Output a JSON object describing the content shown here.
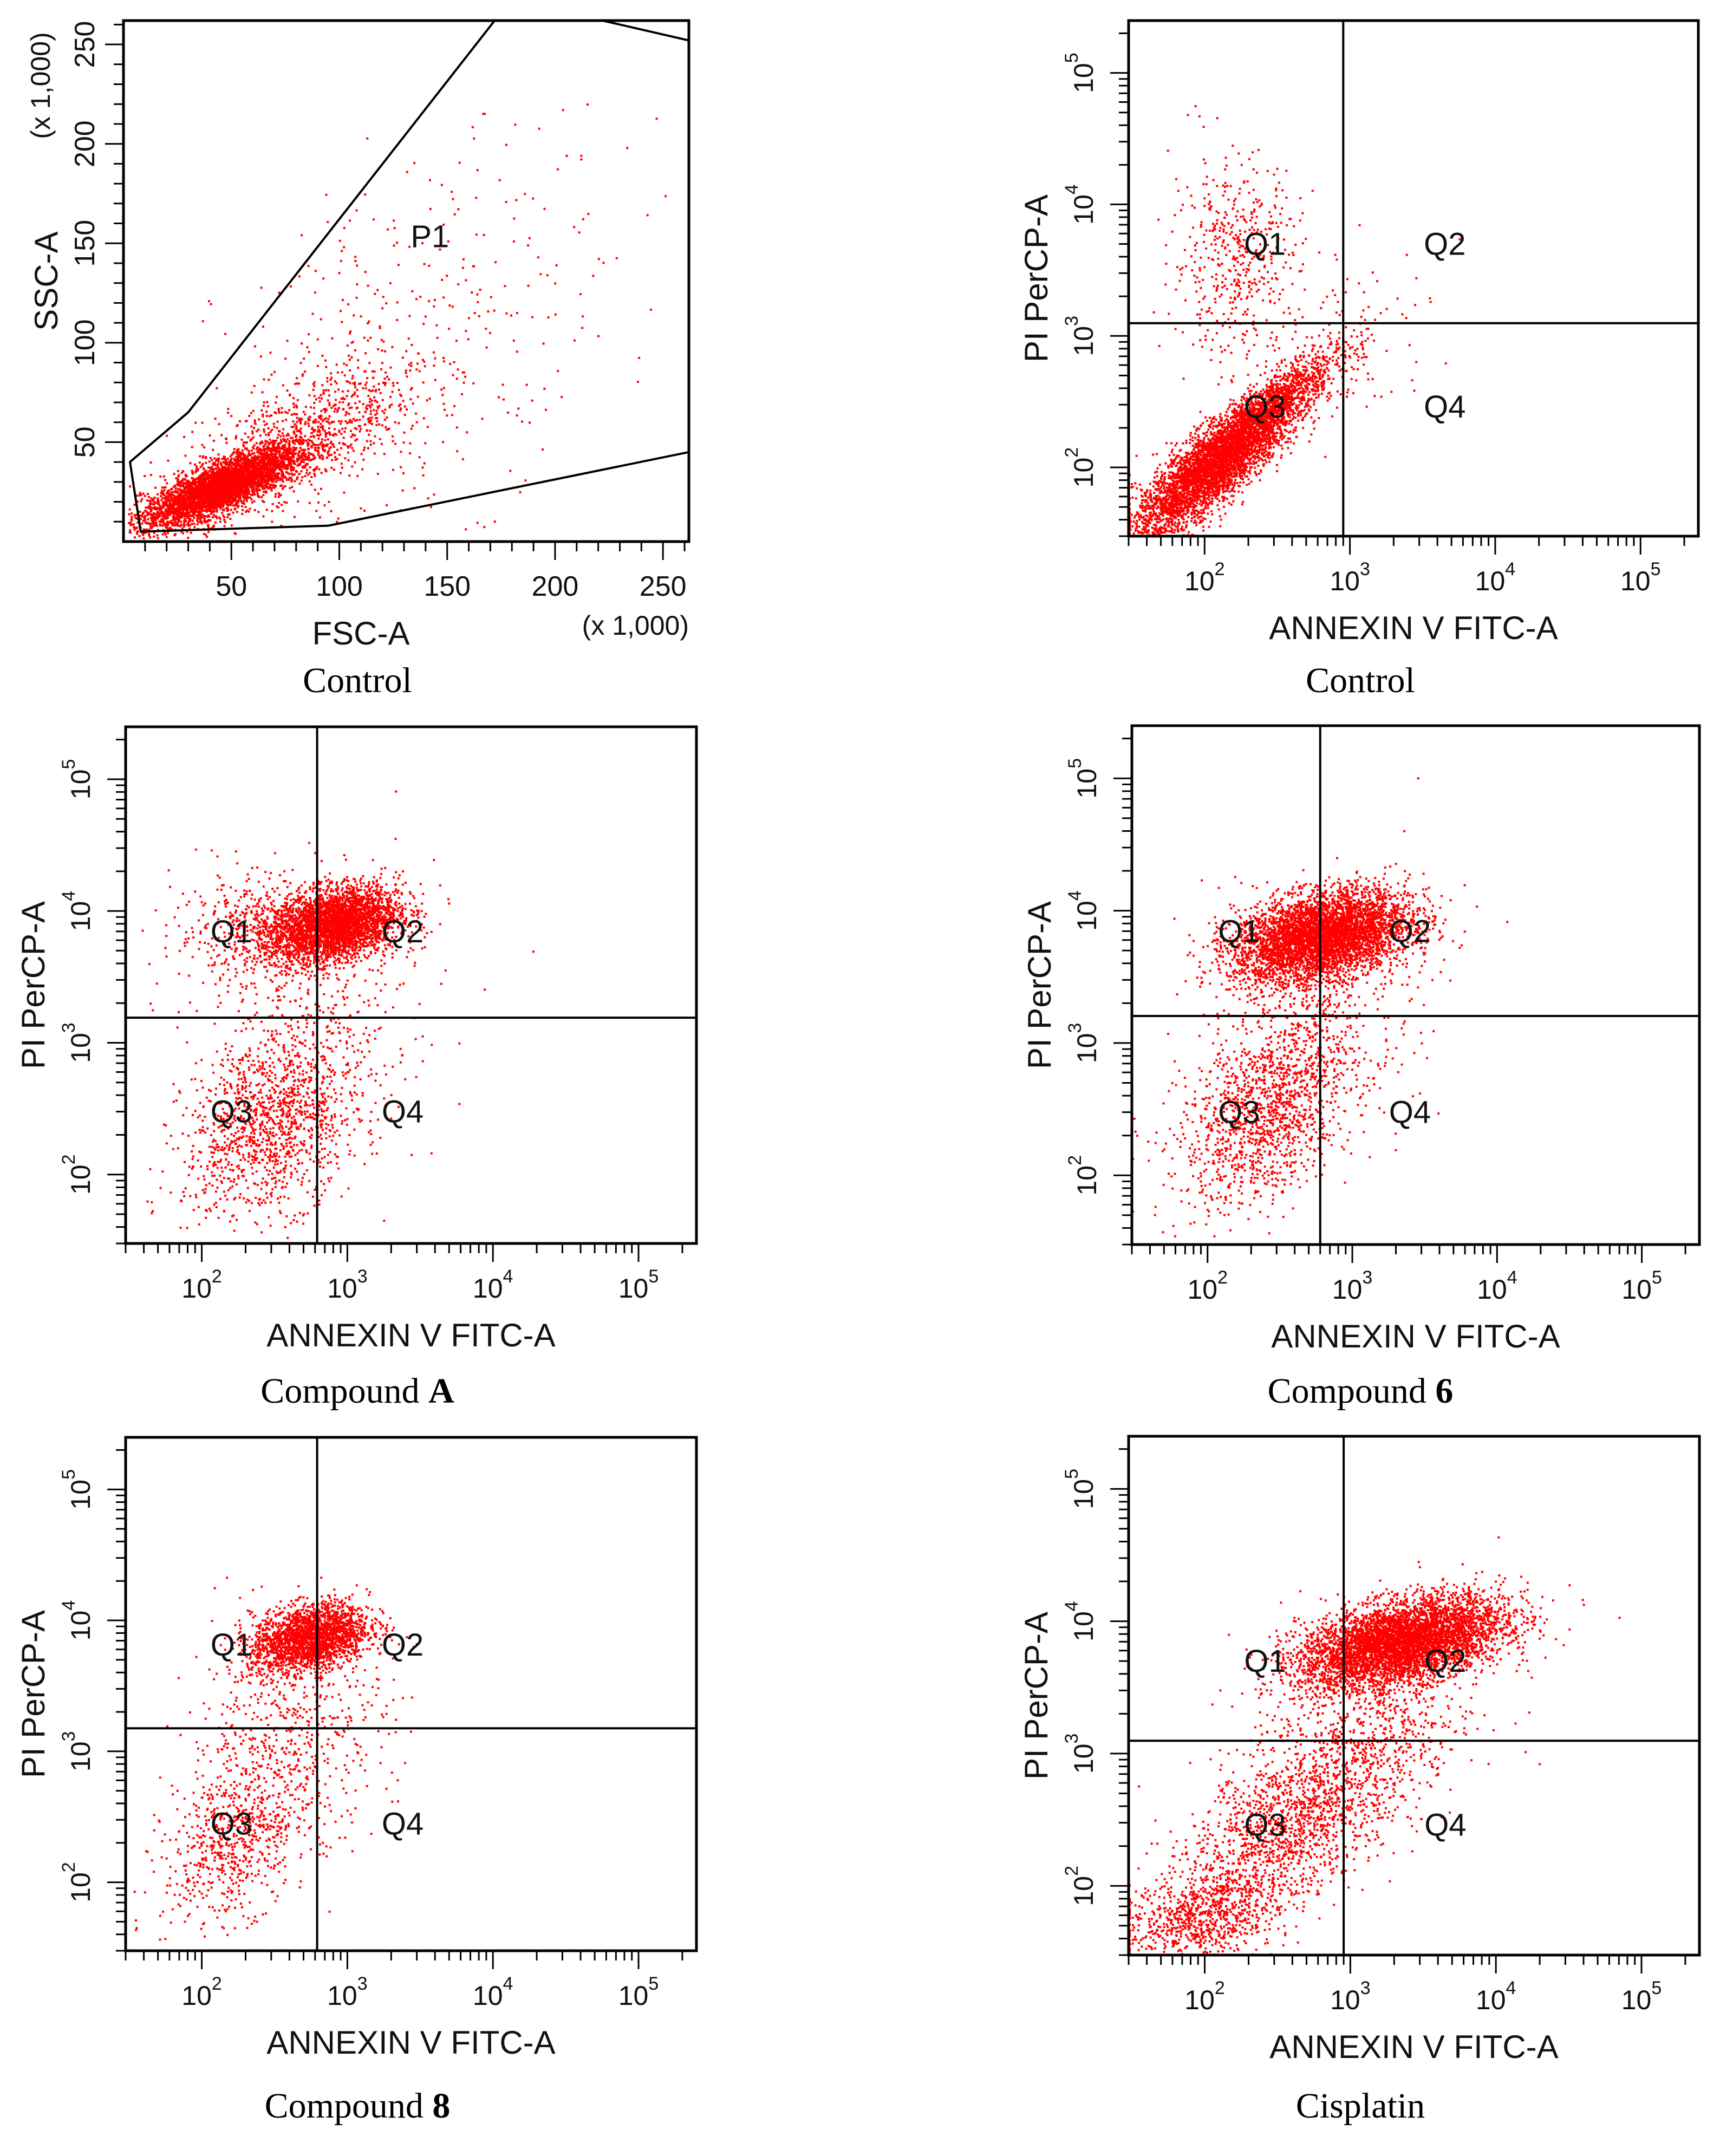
{
  "colors": {
    "dot": "#ff0000",
    "frame": "#000000",
    "background": "#ffffff"
  },
  "chart_data": [
    {
      "type": "scatter",
      "caption": "Control",
      "xlabel": "FSC-A",
      "ylabel": "SSC-A",
      "x_multiplier": "(x 1,000)",
      "y_multiplier": "(x 1,000)",
      "xscale": "linear",
      "yscale": "linear",
      "xlim": [
        0,
        262
      ],
      "ylim": [
        0,
        262
      ],
      "x_ticks": [
        "50",
        "100",
        "150",
        "200",
        "250"
      ],
      "y_ticks": [
        "50",
        "100",
        "150",
        "200",
        "250"
      ],
      "gate": {
        "name": "P1",
        "label_at": [
          142,
          148
        ],
        "vertices": [
          [
            3,
            40
          ],
          [
            8,
            5
          ],
          [
            95,
            8
          ],
          [
            262,
            45
          ],
          [
            262,
            252
          ],
          [
            222,
            262
          ],
          [
            172,
            262
          ],
          [
            30,
            65
          ]
        ]
      },
      "population": [
        {
          "mean": [
            45,
            28
          ],
          "sd": [
            18,
            10
          ],
          "corr": 0.8,
          "count": 4200
        },
        {
          "mean": [
            80,
            50
          ],
          "sd": [
            30,
            22
          ],
          "corr": 0.7,
          "count": 1000
        },
        {
          "mean": [
            135,
            100
          ],
          "sd": [
            45,
            50
          ],
          "corr": 0.4,
          "count": 340
        }
      ],
      "grid": false,
      "legend": "none"
    },
    {
      "type": "scatter",
      "caption": "Control",
      "xlabel": "ANNEXIN V FITC-A",
      "ylabel": "PI PerCP-A",
      "xscale": "log",
      "yscale": "log",
      "xlim": [
        30,
        250000
      ],
      "ylim": [
        30,
        250000
      ],
      "x_ticks": [
        {
          "base": "10",
          "exp": "2",
          "value": 100
        },
        {
          "base": "10",
          "exp": "3",
          "value": 1000
        },
        {
          "base": "10",
          "exp": "4",
          "value": 10000
        },
        {
          "base": "10",
          "exp": "5",
          "value": 100000
        }
      ],
      "y_ticks": [
        {
          "base": "10",
          "exp": "2",
          "value": 100
        },
        {
          "base": "10",
          "exp": "3",
          "value": 1000
        },
        {
          "base": "10",
          "exp": "4",
          "value": 10000
        },
        {
          "base": "10",
          "exp": "5",
          "value": 100000
        }
      ],
      "quadrant_gate": {
        "x": 900,
        "y": 1250
      },
      "quadrant_labels": [
        {
          "label": "Q1",
          "at": [
            260,
            5000
          ]
        },
        {
          "label": "Q2",
          "at": [
            4500,
            5000
          ]
        },
        {
          "label": "Q3",
          "at": [
            260,
            290
          ]
        },
        {
          "label": "Q4",
          "at": [
            4500,
            290
          ]
        }
      ],
      "population": [
        {
          "mean": [
            120,
            110
          ],
          "sd": [
            0.28,
            0.28
          ],
          "corr": 0.85,
          "count": 4500
        },
        {
          "mean": [
            300,
            320
          ],
          "sd": [
            0.25,
            0.22
          ],
          "corr": 0.9,
          "count": 900
        },
        {
          "mean": [
            160,
            4000
          ],
          "sd": [
            0.22,
            0.38
          ],
          "corr": 0.0,
          "count": 480
        },
        {
          "mean": [
            900,
            800
          ],
          "sd": [
            0.32,
            0.35
          ],
          "corr": 0.3,
          "count": 120
        }
      ],
      "grid": false,
      "legend": "none"
    },
    {
      "type": "scatter",
      "caption": "Compound ",
      "caption_bold": "A",
      "xlabel": "ANNEXIN V FITC-A",
      "ylabel": "PI PerCP-A",
      "xscale": "log",
      "yscale": "log",
      "xlim": [
        30,
        250000
      ],
      "ylim": [
        30,
        250000
      ],
      "x_ticks": [
        {
          "base": "10",
          "exp": "2",
          "value": 100
        },
        {
          "base": "10",
          "exp": "3",
          "value": 1000
        },
        {
          "base": "10",
          "exp": "4",
          "value": 10000
        },
        {
          "base": "10",
          "exp": "5",
          "value": 100000
        }
      ],
      "y_ticks": [
        {
          "base": "10",
          "exp": "2",
          "value": 100
        },
        {
          "base": "10",
          "exp": "3",
          "value": 1000
        },
        {
          "base": "10",
          "exp": "4",
          "value": 10000
        },
        {
          "base": "10",
          "exp": "5",
          "value": 100000
        }
      ],
      "quadrant_gate": {
        "x": 620,
        "y": 1550
      },
      "quadrant_labels": [
        {
          "label": "Q1",
          "at": [
            160,
            7000
          ]
        },
        {
          "label": "Q2",
          "at": [
            2400,
            7000
          ]
        },
        {
          "label": "Q3",
          "at": [
            160,
            300
          ]
        },
        {
          "label": "Q4",
          "at": [
            2400,
            300
          ]
        }
      ],
      "population": [
        {
          "mean": [
            800,
            8000
          ],
          "sd": [
            0.22,
            0.14
          ],
          "corr": 0.3,
          "count": 3400
        },
        {
          "mean": [
            300,
            250
          ],
          "sd": [
            0.3,
            0.35
          ],
          "corr": 0.3,
          "count": 1300
        },
        {
          "mean": [
            250,
            7000
          ],
          "sd": [
            0.3,
            0.22
          ],
          "corr": 0.0,
          "count": 500
        },
        {
          "mean": [
            700,
            1500
          ],
          "sd": [
            0.4,
            0.5
          ],
          "corr": 0.2,
          "count": 300
        }
      ],
      "grid": false,
      "legend": "none"
    },
    {
      "type": "scatter",
      "caption": "Compound ",
      "caption_bold": "6",
      "xlabel": "ANNEXIN V FITC-A",
      "ylabel": "PI PerCP-A",
      "xscale": "log",
      "yscale": "log",
      "xlim": [
        30,
        250000
      ],
      "ylim": [
        30,
        250000
      ],
      "x_ticks": [
        {
          "base": "10",
          "exp": "2",
          "value": 100
        },
        {
          "base": "10",
          "exp": "3",
          "value": 1000
        },
        {
          "base": "10",
          "exp": "4",
          "value": 10000
        },
        {
          "base": "10",
          "exp": "5",
          "value": 100000
        }
      ],
      "y_ticks": [
        {
          "base": "10",
          "exp": "2",
          "value": 100
        },
        {
          "base": "10",
          "exp": "3",
          "value": 1000
        },
        {
          "base": "10",
          "exp": "4",
          "value": 10000
        },
        {
          "base": "10",
          "exp": "5",
          "value": 100000
        }
      ],
      "quadrant_gate": {
        "x": 600,
        "y": 1600
      },
      "quadrant_labels": [
        {
          "label": "Q1",
          "at": [
            165,
            7000
          ]
        },
        {
          "label": "Q2",
          "at": [
            2500,
            7000
          ]
        },
        {
          "label": "Q3",
          "at": [
            165,
            300
          ]
        },
        {
          "label": "Q4",
          "at": [
            2500,
            300
          ]
        }
      ],
      "population": [
        {
          "mean": [
            600,
            6500
          ],
          "sd": [
            0.3,
            0.17
          ],
          "corr": 0.35,
          "count": 4700
        },
        {
          "mean": [
            250,
            300
          ],
          "sd": [
            0.3,
            0.35
          ],
          "corr": 0.4,
          "count": 1300
        },
        {
          "mean": [
            600,
            1500
          ],
          "sd": [
            0.35,
            0.4
          ],
          "corr": 0.2,
          "count": 400
        }
      ],
      "grid": false,
      "legend": "none"
    },
    {
      "type": "scatter",
      "caption": "Compound ",
      "caption_bold": "8",
      "xlabel": "ANNEXIN V FITC-A",
      "ylabel": "PI PerCP-A",
      "xscale": "log",
      "yscale": "log",
      "xlim": [
        30,
        250000
      ],
      "ylim": [
        30,
        250000
      ],
      "x_ticks": [
        {
          "base": "10",
          "exp": "2",
          "value": 100
        },
        {
          "base": "10",
          "exp": "3",
          "value": 1000
        },
        {
          "base": "10",
          "exp": "4",
          "value": 10000
        },
        {
          "base": "10",
          "exp": "5",
          "value": 100000
        }
      ],
      "y_ticks": [
        {
          "base": "10",
          "exp": "2",
          "value": 100
        },
        {
          "base": "10",
          "exp": "3",
          "value": 1000
        },
        {
          "base": "10",
          "exp": "4",
          "value": 10000
        },
        {
          "base": "10",
          "exp": "5",
          "value": 100000
        }
      ],
      "quadrant_gate": {
        "x": 620,
        "y": 1500
      },
      "quadrant_labels": [
        {
          "label": "Q1",
          "at": [
            160,
            6500
          ]
        },
        {
          "label": "Q2",
          "at": [
            2400,
            6500
          ]
        },
        {
          "label": "Q3",
          "at": [
            160,
            280
          ]
        },
        {
          "label": "Q4",
          "at": [
            2400,
            280
          ]
        }
      ],
      "population": [
        {
          "mean": [
            550,
            7500
          ],
          "sd": [
            0.2,
            0.13
          ],
          "corr": 0.3,
          "count": 2200
        },
        {
          "mean": [
            170,
            220
          ],
          "sd": [
            0.25,
            0.32
          ],
          "corr": 0.4,
          "count": 700
        },
        {
          "mean": [
            400,
            1500
          ],
          "sd": [
            0.35,
            0.4
          ],
          "corr": 0.1,
          "count": 500
        }
      ],
      "grid": false,
      "legend": "none"
    },
    {
      "type": "scatter",
      "caption": "Cisplatin",
      "xlabel": "ANNEXIN V FITC-A",
      "ylabel": "PI PerCP-A",
      "xscale": "log",
      "yscale": "log",
      "xlim": [
        30,
        250000
      ],
      "ylim": [
        30,
        250000
      ],
      "x_ticks": [
        {
          "base": "10",
          "exp": "2",
          "value": 100
        },
        {
          "base": "10",
          "exp": "3",
          "value": 1000
        },
        {
          "base": "10",
          "exp": "4",
          "value": 10000
        },
        {
          "base": "10",
          "exp": "5",
          "value": 100000
        }
      ],
      "y_ticks": [
        {
          "base": "10",
          "exp": "2",
          "value": 100
        },
        {
          "base": "10",
          "exp": "3",
          "value": 1000
        },
        {
          "base": "10",
          "exp": "4",
          "value": 10000
        },
        {
          "base": "10",
          "exp": "5",
          "value": 100000
        }
      ],
      "quadrant_gate": {
        "x": 900,
        "y": 1250
      },
      "quadrant_labels": [
        {
          "label": "Q1",
          "at": [
            260,
            5000
          ]
        },
        {
          "label": "Q2",
          "at": [
            4500,
            5000
          ]
        },
        {
          "label": "Q3",
          "at": [
            260,
            290
          ]
        },
        {
          "label": "Q4",
          "at": [
            4500,
            290
          ]
        }
      ],
      "population": [
        {
          "mean": [
            2200,
            7000
          ],
          "sd": [
            0.35,
            0.17
          ],
          "corr": 0.45,
          "count": 5200
        },
        {
          "mean": [
            400,
            300
          ],
          "sd": [
            0.45,
            0.45
          ],
          "corr": 0.7,
          "count": 1800
        },
        {
          "mean": [
            90,
            60
          ],
          "sd": [
            0.25,
            0.15
          ],
          "corr": 0.3,
          "count": 600
        },
        {
          "mean": [
            1200,
            1200
          ],
          "sd": [
            0.4,
            0.4
          ],
          "corr": 0.3,
          "count": 400
        }
      ],
      "grid": false,
      "legend": "none"
    }
  ]
}
